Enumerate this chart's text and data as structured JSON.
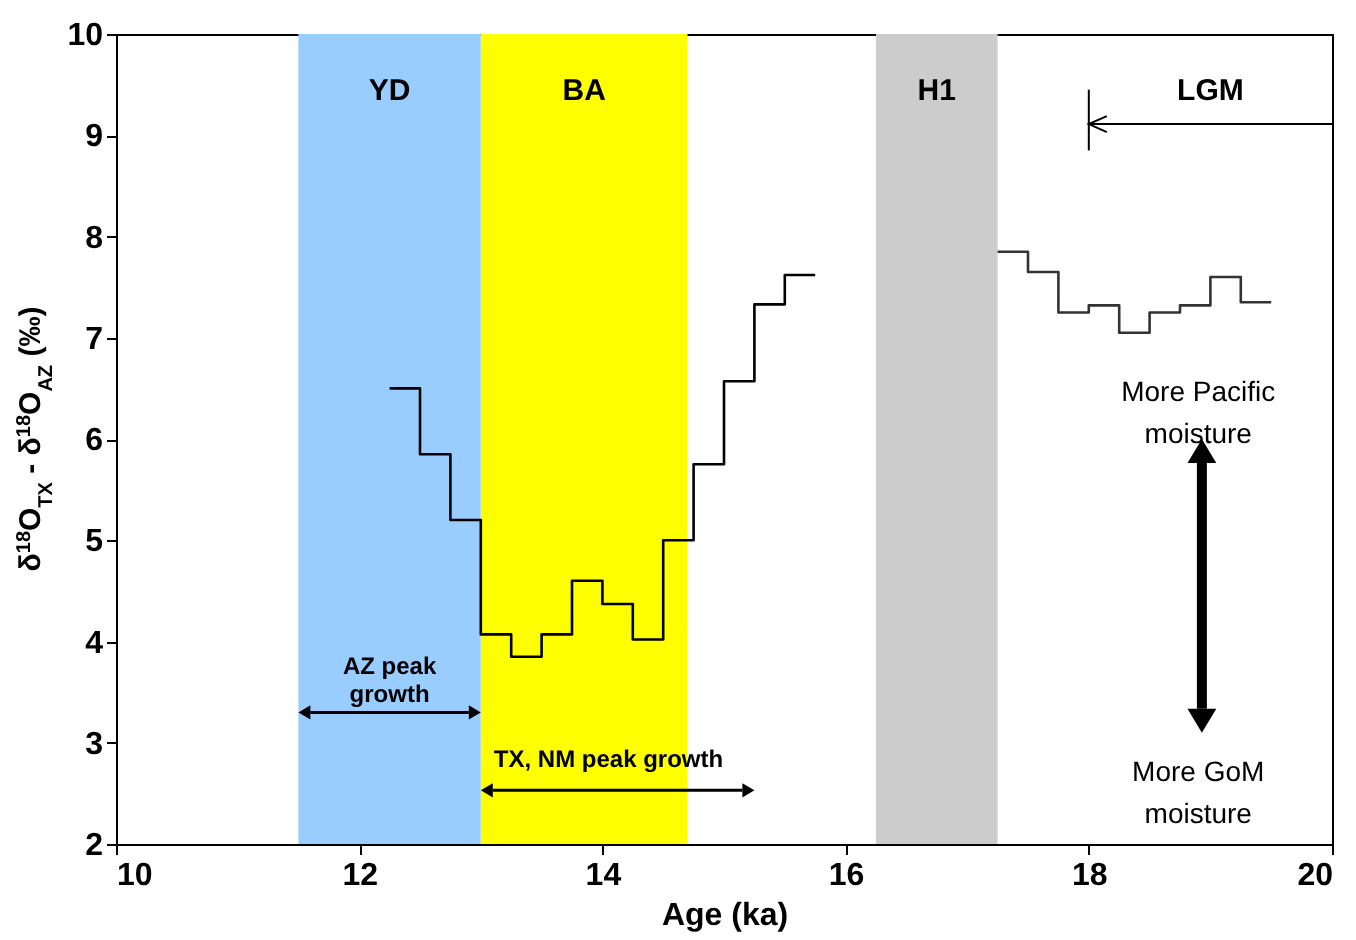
{
  "chart_data": {
    "type": "step",
    "xlabel": "Age (ka)",
    "ylabel": "δ$^{18}$O$_{TX}$ - δ$^{18}$O$_{AZ}$ (‰)",
    "xlim": [
      10,
      20
    ],
    "xticks": [
      10,
      12,
      14,
      16,
      18,
      20
    ],
    "ylim": [
      2,
      10
    ],
    "yticks": [
      2,
      3,
      4,
      5,
      6,
      7,
      8,
      9,
      10
    ],
    "grid": false,
    "series": [
      {
        "color": "#000000",
        "x": [
          12.25,
          12.5,
          12.75,
          13.0,
          13.25,
          13.5,
          13.75,
          14.0,
          14.25,
          14.5,
          14.75,
          15.0,
          15.25,
          15.5,
          15.75
        ],
        "values": [
          6.5,
          5.85,
          5.2,
          4.07,
          3.85,
          4.07,
          4.6,
          4.37,
          4.02,
          5.0,
          5.75,
          6.57,
          7.33,
          7.62,
          7.62
        ]
      },
      {
        "color": "#333333",
        "x": [
          17.25,
          17.5,
          17.75,
          18.0,
          18.25,
          18.5,
          18.75,
          19.0,
          19.25,
          19.5
        ],
        "values": [
          7.85,
          7.65,
          7.25,
          7.32,
          7.05,
          7.25,
          7.32,
          7.6,
          7.35,
          7.35
        ]
      }
    ],
    "bands": [
      {
        "axis": "x",
        "from": 11.5,
        "to": 13.0,
        "label": "YD",
        "color": "#99ccff"
      },
      {
        "axis": "x",
        "from": 13.0,
        "to": 14.7,
        "label": "BA",
        "color": "#ffff00"
      },
      {
        "axis": "x",
        "from": 16.25,
        "to": 17.25,
        "label": "H1",
        "color": "#cccccc"
      }
    ],
    "annotations": [
      "LGM",
      "AZ peak\ngrowth",
      "TX, NM peak growth",
      "More Pacific\nmoisture",
      "More GoM\nmoisture"
    ]
  }
}
